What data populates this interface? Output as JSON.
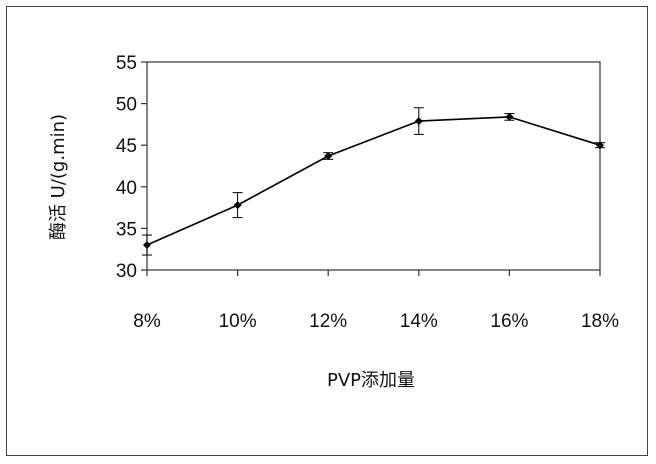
{
  "chart_data": {
    "type": "line",
    "title": "",
    "xlabel": "PVP添加量",
    "ylabel": "酶活 U/(g.min)",
    "categories": [
      "8%",
      "10%",
      "12%",
      "14%",
      "16%",
      "18%"
    ],
    "series": [
      {
        "values": [
          33.0,
          37.8,
          43.7,
          47.9,
          48.4,
          45.0
        ],
        "errors": [
          1.2,
          1.5,
          0.4,
          1.6,
          0.4,
          0.3
        ]
      }
    ],
    "ylim": [
      30,
      55
    ],
    "yticks": [
      30,
      35,
      40,
      45,
      50,
      55
    ],
    "grid": false,
    "legend": "none",
    "line_color": "#000000"
  }
}
